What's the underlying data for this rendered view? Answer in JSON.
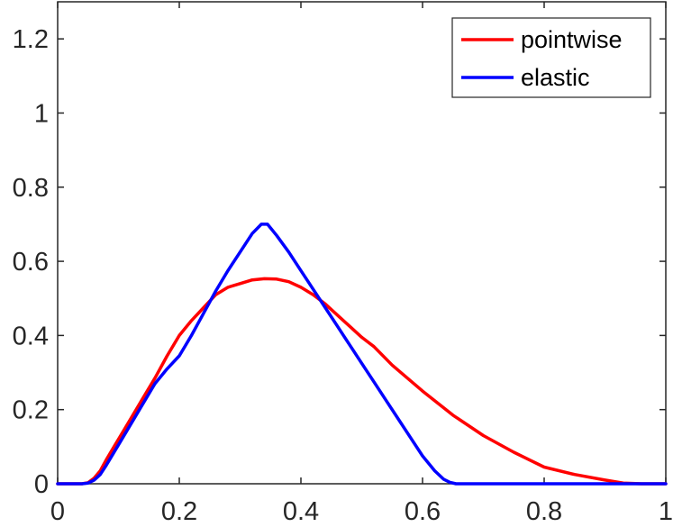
{
  "chart_data": {
    "type": "line",
    "title": "",
    "xlabel": "",
    "ylabel": "",
    "xlim": [
      0,
      1
    ],
    "ylim": [
      0,
      1.3
    ],
    "xticks": [
      0,
      0.2,
      0.4,
      0.6,
      0.8,
      1
    ],
    "xtick_labels": [
      "0",
      "0.2",
      "0.4",
      "0.6",
      "0.8",
      "1"
    ],
    "yticks": [
      0,
      0.2,
      0.4,
      0.6,
      0.8,
      1,
      1.2
    ],
    "ytick_labels": [
      "0",
      "0.2",
      "0.4",
      "0.6",
      "0.8",
      "1",
      "1.2"
    ],
    "grid": false,
    "legend_position": "top-right",
    "series": [
      {
        "name": "pointwise",
        "color": "#ff0000",
        "x": [
          0,
          0.04,
          0.05,
          0.06,
          0.07,
          0.08,
          0.1,
          0.12,
          0.14,
          0.16,
          0.18,
          0.2,
          0.22,
          0.24,
          0.26,
          0.28,
          0.3,
          0.32,
          0.34,
          0.36,
          0.38,
          0.4,
          0.42,
          0.44,
          0.46,
          0.48,
          0.5,
          0.52,
          0.55,
          0.6,
          0.65,
          0.7,
          0.75,
          0.8,
          0.85,
          0.9,
          0.93,
          0.96,
          1
        ],
        "y": [
          0,
          0,
          0.003,
          0.015,
          0.035,
          0.065,
          0.12,
          0.175,
          0.23,
          0.285,
          0.345,
          0.4,
          0.44,
          0.475,
          0.51,
          0.53,
          0.54,
          0.55,
          0.553,
          0.552,
          0.545,
          0.53,
          0.51,
          0.485,
          0.455,
          0.425,
          0.395,
          0.37,
          0.32,
          0.25,
          0.185,
          0.13,
          0.085,
          0.045,
          0.025,
          0.01,
          0.002,
          0,
          0
        ]
      },
      {
        "name": "elastic",
        "color": "#0000ff",
        "x": [
          0,
          0.04,
          0.05,
          0.06,
          0.07,
          0.08,
          0.1,
          0.12,
          0.14,
          0.16,
          0.18,
          0.2,
          0.22,
          0.24,
          0.26,
          0.28,
          0.3,
          0.32,
          0.335,
          0.345,
          0.36,
          0.38,
          0.4,
          0.42,
          0.44,
          0.46,
          0.48,
          0.5,
          0.52,
          0.54,
          0.56,
          0.58,
          0.6,
          0.62,
          0.635,
          0.645,
          0.655,
          0.67,
          0.7,
          1
        ],
        "y": [
          0,
          0,
          0.002,
          0.01,
          0.025,
          0.05,
          0.105,
          0.16,
          0.215,
          0.27,
          0.31,
          0.345,
          0.4,
          0.46,
          0.52,
          0.575,
          0.625,
          0.675,
          0.7,
          0.7,
          0.67,
          0.625,
          0.575,
          0.525,
          0.475,
          0.425,
          0.375,
          0.325,
          0.275,
          0.225,
          0.175,
          0.125,
          0.075,
          0.035,
          0.012,
          0.004,
          0,
          0,
          0,
          0
        ]
      }
    ]
  }
}
